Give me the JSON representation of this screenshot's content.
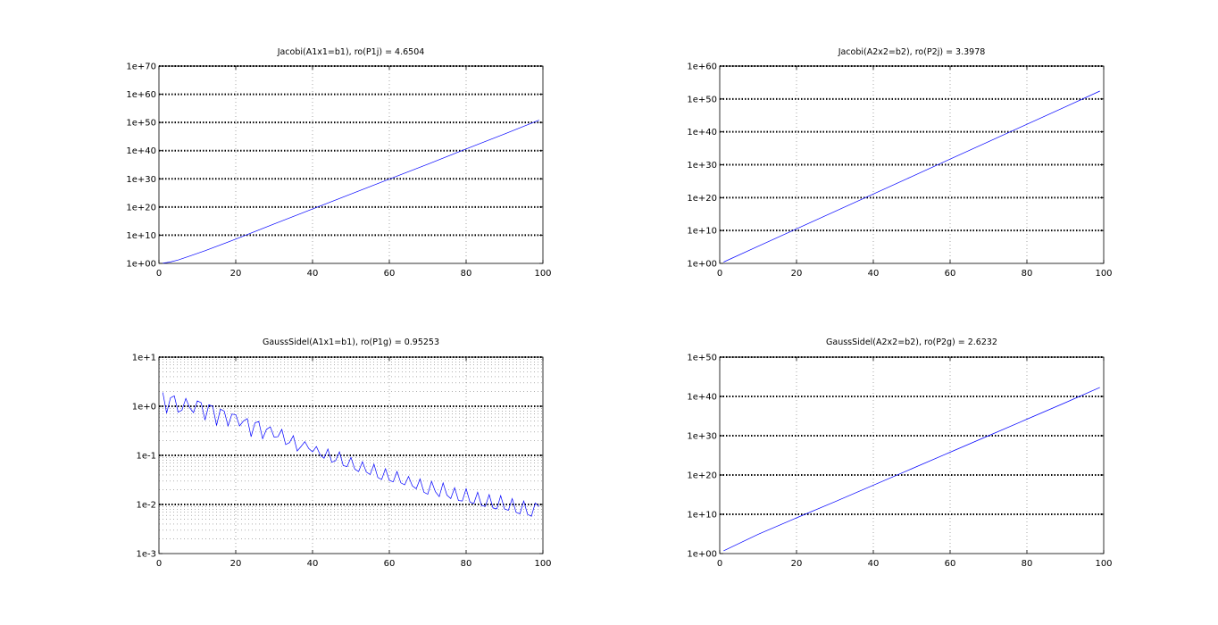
{
  "colors": {
    "series": "#0000ff",
    "axes": "#000000",
    "grid": "#808080",
    "background": "#ffffff"
  },
  "chart_data": [
    {
      "type": "line",
      "title": "Jacobi(A1x1=b1), ro(P1j) = 4.6504",
      "xlabel": "",
      "ylabel": "",
      "xlim": [
        0,
        100
      ],
      "yscale": "log",
      "ylim_log10": [
        0,
        70
      ],
      "xticks": [
        0,
        20,
        40,
        60,
        80,
        100
      ],
      "xtick_labels": [
        "0",
        "20",
        "40",
        "60",
        "80",
        "100"
      ],
      "yticks_log10": [
        0,
        10,
        20,
        30,
        40,
        50,
        60,
        70
      ],
      "ytick_labels": [
        "1e+00",
        "1e+10",
        "1e+20",
        "1e+30",
        "1e+40",
        "1e+50",
        "1e+60",
        "1e+70"
      ],
      "minor_yticks_log10": [],
      "grid": true,
      "series": [
        {
          "x": [
            1,
            2,
            3,
            5,
            8,
            12,
            20,
            30,
            40,
            50,
            60,
            70,
            80,
            90,
            99
          ],
          "y_log10": [
            0.1,
            0.3,
            0.5,
            1.2,
            2.6,
            4.5,
            8.6,
            14.0,
            19.3,
            24.6,
            29.9,
            35.2,
            40.6,
            45.9,
            50.8
          ]
        }
      ]
    },
    {
      "type": "line",
      "title": "Jacobi(A2x2=b2), ro(P2j) = 3.3978",
      "xlabel": "",
      "ylabel": "",
      "xlim": [
        0,
        100
      ],
      "yscale": "log",
      "ylim_log10": [
        0,
        60
      ],
      "xticks": [
        0,
        20,
        40,
        60,
        80,
        100
      ],
      "xtick_labels": [
        "0",
        "20",
        "40",
        "60",
        "80",
        "100"
      ],
      "yticks_log10": [
        0,
        10,
        20,
        30,
        40,
        50,
        60
      ],
      "ytick_labels": [
        "1e+00",
        "1e+10",
        "1e+20",
        "1e+30",
        "1e+40",
        "1e+50",
        "1e+60"
      ],
      "minor_yticks_log10": [],
      "grid": true,
      "series": [
        {
          "x": [
            1,
            10,
            20,
            30,
            40,
            50,
            60,
            70,
            80,
            90,
            99
          ],
          "y_log10": [
            0.4,
            5.2,
            10.5,
            15.8,
            21.1,
            26.4,
            31.7,
            37.0,
            42.3,
            47.6,
            52.4
          ]
        }
      ]
    },
    {
      "type": "line",
      "title": "GaussSidel(A1x1=b1), ro(P1g) = 0.95253",
      "xlabel": "",
      "ylabel": "",
      "xlim": [
        0,
        100
      ],
      "yscale": "log",
      "ylim_log10": [
        -3,
        1
      ],
      "xticks": [
        0,
        20,
        40,
        60,
        80,
        100
      ],
      "xtick_labels": [
        "0",
        "20",
        "40",
        "60",
        "80",
        "100"
      ],
      "yticks_log10": [
        -3,
        -2,
        -1,
        0,
        1
      ],
      "ytick_labels": [
        "1e-3",
        "1e-2",
        "1e-1",
        "1e+0",
        "1e+1"
      ],
      "minor_yticks_log10": [
        -2.699,
        -2.523,
        -2.398,
        -2.301,
        -2.222,
        -2.155,
        -2.097,
        -2.046,
        -1.699,
        -1.523,
        -1.398,
        -1.301,
        -1.222,
        -1.155,
        -1.097,
        -1.046,
        -0.699,
        -0.523,
        -0.398,
        -0.301,
        -0.222,
        -0.155,
        -0.097,
        -0.046,
        0.301,
        0.477,
        0.602,
        0.699,
        0.778,
        0.845,
        0.903,
        0.954
      ],
      "grid": true,
      "series": [
        {
          "x": [
            1,
            2,
            3,
            4,
            5,
            6,
            7,
            8,
            9,
            10,
            11,
            12,
            13,
            14,
            15,
            16,
            17,
            18,
            19,
            20,
            21,
            22,
            23,
            24,
            25,
            26,
            27,
            28,
            29,
            30,
            31,
            32,
            33,
            34,
            35,
            36,
            37,
            38,
            39,
            40,
            41,
            42,
            43,
            44,
            45,
            46,
            47,
            48,
            49,
            50,
            51,
            52,
            53,
            54,
            55,
            56,
            57,
            58,
            59,
            60,
            61,
            62,
            63,
            64,
            65,
            66,
            67,
            68,
            69,
            70,
            71,
            72,
            73,
            74,
            75,
            76,
            77,
            78,
            79,
            80,
            81,
            82,
            83,
            84,
            85,
            86,
            87,
            88,
            89,
            90,
            91,
            92,
            93,
            94,
            95,
            96,
            97,
            98,
            99
          ],
          "y_log10": [
            0.28,
            -0.14,
            0.17,
            0.21,
            -0.12,
            -0.08,
            0.16,
            -0.03,
            -0.13,
            0.11,
            0.07,
            -0.28,
            0.03,
            0.0,
            -0.39,
            -0.06,
            -0.1,
            -0.4,
            -0.16,
            -0.17,
            -0.4,
            -0.3,
            -0.25,
            -0.62,
            -0.34,
            -0.31,
            -0.66,
            -0.47,
            -0.42,
            -0.63,
            -0.62,
            -0.47,
            -0.78,
            -0.74,
            -0.6,
            -0.91,
            -0.82,
            -0.72,
            -0.86,
            -0.93,
            -0.82,
            -0.99,
            -1.06,
            -0.87,
            -1.14,
            -1.11,
            -0.93,
            -1.21,
            -1.23,
            -1.04,
            -1.28,
            -1.33,
            -1.13,
            -1.34,
            -1.39,
            -1.18,
            -1.45,
            -1.49,
            -1.27,
            -1.51,
            -1.54,
            -1.33,
            -1.56,
            -1.6,
            -1.43,
            -1.62,
            -1.68,
            -1.48,
            -1.75,
            -1.79,
            -1.53,
            -1.74,
            -1.84,
            -1.56,
            -1.81,
            -1.88,
            -1.66,
            -1.92,
            -1.93,
            -1.68,
            -1.95,
            -1.98,
            -1.75,
            -2.02,
            -2.04,
            -1.8,
            -2.07,
            -2.09,
            -1.82,
            -2.09,
            -2.12,
            -1.88,
            -2.16,
            -2.19,
            -1.93,
            -2.2,
            -2.24,
            -1.97,
            -2.04
          ]
        }
      ]
    },
    {
      "type": "line",
      "title": "GaussSidel(A2x2=b2), ro(P2g) = 2.6232",
      "xlabel": "",
      "ylabel": "",
      "xlim": [
        0,
        100
      ],
      "yscale": "log",
      "ylim_log10": [
        0,
        50
      ],
      "xticks": [
        0,
        20,
        40,
        60,
        80,
        100
      ],
      "xtick_labels": [
        "0",
        "20",
        "40",
        "60",
        "80",
        "100"
      ],
      "yticks_log10": [
        0,
        10,
        20,
        30,
        40,
        50
      ],
      "ytick_labels": [
        "1e+00",
        "1e+10",
        "1e+20",
        "1e+30",
        "1e+40",
        "1e+50"
      ],
      "minor_yticks_log10": [],
      "grid": true,
      "series": [
        {
          "x": [
            1,
            10,
            20,
            30,
            40,
            50,
            60,
            70,
            80,
            90,
            99
          ],
          "y_log10": [
            0.7,
            4.9,
            9.1,
            13.2,
            17.4,
            21.6,
            25.8,
            30.0,
            34.2,
            38.4,
            42.3
          ]
        }
      ]
    }
  ]
}
